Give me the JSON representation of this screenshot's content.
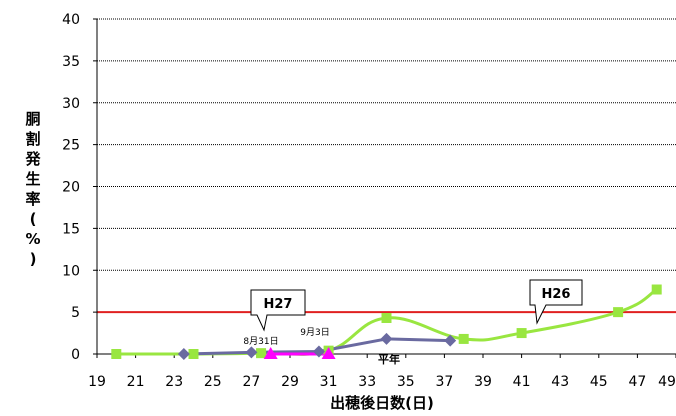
{
  "chart_data": {
    "type": "line",
    "xlabel": "出穂後日数(日)",
    "ylabel": "胴割発生率(%)",
    "xlim": [
      19,
      49
    ],
    "ylim": [
      0,
      40
    ],
    "x_ticks": [
      "19",
      "21",
      "23",
      "25",
      "27",
      "29",
      "31",
      "33",
      "35",
      "37",
      "39",
      "41",
      "43",
      "45",
      "47",
      "49"
    ],
    "y_ticks": [
      "0",
      "5",
      "10",
      "15",
      "20",
      "25",
      "30",
      "35",
      "40"
    ],
    "grid": true,
    "threshold": {
      "value": 5,
      "color": "#e02020"
    },
    "series": [
      {
        "name": "H26",
        "color": "#99e640",
        "marker": "square",
        "smooth": true,
        "x": [
          20,
          24,
          27.5,
          31,
          34,
          38,
          41,
          46,
          48
        ],
        "y": [
          0,
          0,
          0.1,
          0.4,
          4.3,
          1.8,
          2.5,
          5.0,
          7.7
        ]
      },
      {
        "name": "平年",
        "color": "#6a6aa0",
        "marker": "diamond",
        "smooth": false,
        "x": [
          23.5,
          27,
          30.5,
          34,
          37.3
        ],
        "y": [
          0,
          0.2,
          0.3,
          1.8,
          1.6
        ]
      },
      {
        "name": "H27",
        "color": "#ff00ff",
        "marker": "triangle",
        "smooth": false,
        "x": [
          28,
          31
        ],
        "y": [
          0,
          0
        ]
      }
    ],
    "annotations": [
      {
        "id": "ann-aug31",
        "text": "8月31日"
      },
      {
        "id": "ann-sep3",
        "text": "9月3日"
      },
      {
        "id": "ann-heinen",
        "text": "平年"
      }
    ],
    "callouts": [
      {
        "id": "callout-h27",
        "text": "H27"
      },
      {
        "id": "callout-h26",
        "text": "H26"
      }
    ]
  }
}
